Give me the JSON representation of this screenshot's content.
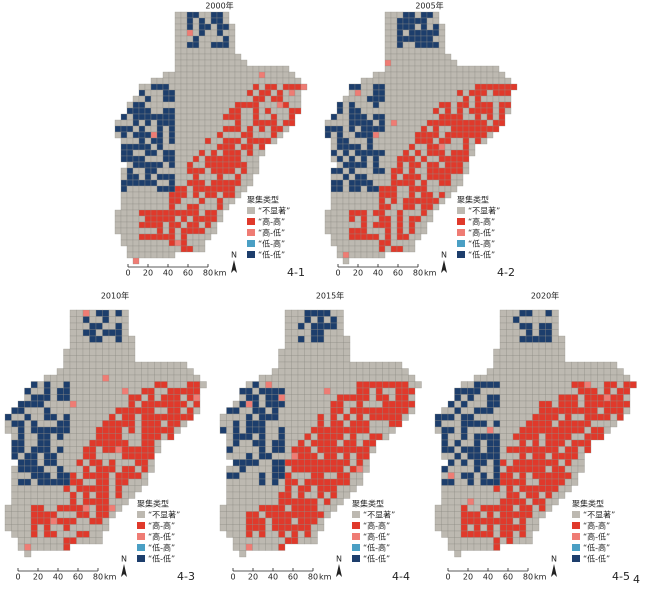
{
  "panels": [
    {
      "title": "2000年",
      "label": "4-1"
    },
    {
      "title": "2005年",
      "label": "4-2"
    },
    {
      "title": "2010年",
      "label": "4-3"
    },
    {
      "title": "2015年",
      "label": "4-4"
    },
    {
      "title": "2020年",
      "label": "4-5"
    }
  ],
  "legend": {
    "title": "聚集类型",
    "items": [
      "“不显著”",
      "“高-高”",
      "“高-低”",
      "“低-高”",
      "“低-低”"
    ],
    "colors": [
      "#bdb9b1",
      "#e0392b",
      "#ef7c74",
      "#4a9fc4",
      "#1d3e6c"
    ]
  },
  "scale": {
    "ticks": [
      "0",
      "20",
      "40",
      "60",
      "80"
    ],
    "unit": "km"
  },
  "north": "N",
  "figure_label": "4"
}
